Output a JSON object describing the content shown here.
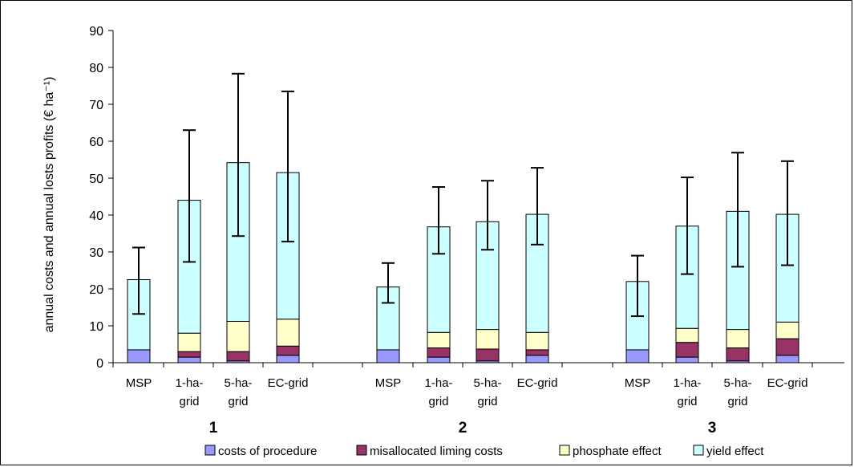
{
  "chart_data": {
    "type": "bar",
    "stacked": true,
    "ylabel": "annual costs and annual losts profits (€ ha⁻¹)",
    "ylim": [
      0,
      90
    ],
    "yticks": [
      0,
      10,
      20,
      30,
      40,
      50,
      60,
      70,
      80,
      90
    ],
    "grid": false,
    "legend_position": "bottom",
    "groups": [
      {
        "label": "1",
        "categories": [
          "MSP",
          "1-ha-grid",
          "5-ha-grid",
          "EC-grid"
        ]
      },
      {
        "label": "2",
        "categories": [
          "MSP",
          "1-ha-grid",
          "5-ha-grid",
          "EC-grid"
        ]
      },
      {
        "label": "3",
        "categories": [
          "MSP",
          "1-ha-grid",
          "5-ha-grid",
          "EC-grid"
        ]
      }
    ],
    "category_lines": {
      "MSP": [
        "MSP"
      ],
      "1-ha-grid": [
        "1-ha-",
        "grid"
      ],
      "5-ha-grid": [
        "5-ha-",
        "grid"
      ],
      "EC-grid": [
        "EC-grid"
      ]
    },
    "series": [
      {
        "name": "costs of procedure",
        "color": "#9999ff",
        "values": [
          3.5,
          1.5,
          0.5,
          2.0,
          3.5,
          1.5,
          0.5,
          2.0,
          3.5,
          1.5,
          0.5,
          2.0
        ]
      },
      {
        "name": "misallocated liming costs",
        "color": "#993366",
        "values": [
          0,
          1.5,
          2.5,
          2.5,
          0,
          2.5,
          3.2,
          1.5,
          0,
          4.0,
          3.5,
          4.5
        ]
      },
      {
        "name": "phosphate effect",
        "color": "#ffffcc",
        "values": [
          0,
          5.0,
          8.2,
          7.3,
          0,
          4.2,
          5.3,
          4.7,
          0,
          3.8,
          5.0,
          4.5
        ]
      },
      {
        "name": "yield effect",
        "color": "#ccffff",
        "values": [
          19.0,
          36.0,
          43.0,
          39.7,
          17.0,
          28.6,
          29.2,
          32.0,
          18.5,
          27.7,
          32.0,
          29.2
        ]
      }
    ],
    "totals": [
      22.5,
      44.0,
      54.2,
      51.5,
      20.5,
      36.8,
      38.2,
      40.2,
      22.0,
      37.0,
      41.0,
      40.2
    ],
    "error_low": [
      13.2,
      27.3,
      34.3,
      32.8,
      16.2,
      29.5,
      30.6,
      32.0,
      12.6,
      24.0,
      26.0,
      26.4
    ],
    "error_high": [
      31.2,
      63.0,
      78.3,
      73.5,
      27.0,
      47.6,
      49.3,
      52.8,
      29.0,
      50.2,
      56.9,
      54.6
    ]
  }
}
